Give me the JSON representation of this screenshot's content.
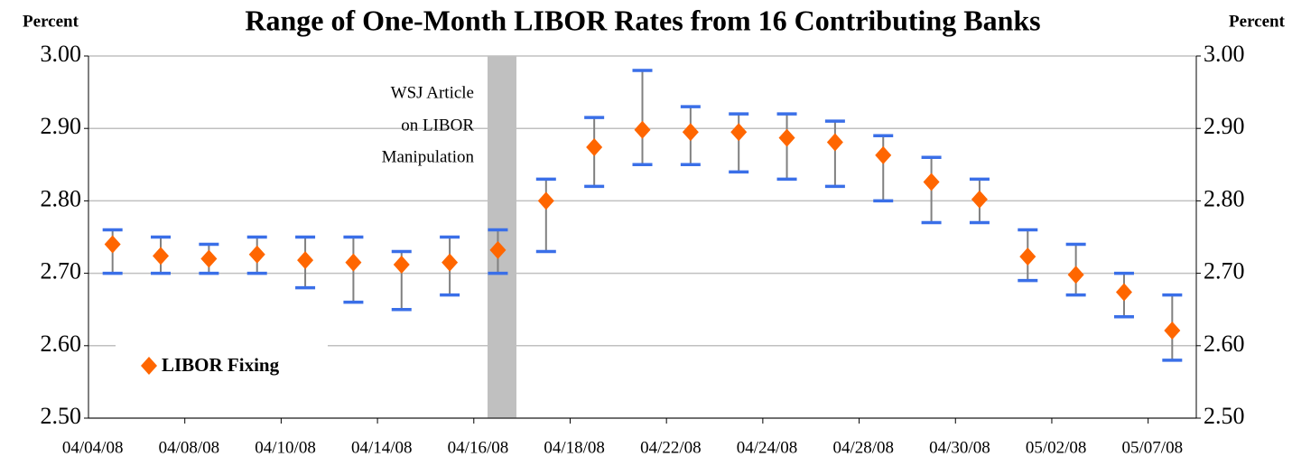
{
  "chart_data": {
    "type": "errorbar",
    "title": "Range of One-Month LIBOR Rates from 16 Contributing Banks",
    "y_label": "Percent",
    "y2_label": "Percent",
    "annotation": [
      "WSJ Article",
      "on LIBOR",
      "Manipulation"
    ],
    "categories": [
      "04/04/08",
      null,
      "04/08/08",
      null,
      "04/10/08",
      null,
      "04/14/08",
      null,
      "04/16/08",
      null,
      "04/18/08",
      null,
      "04/22/08",
      null,
      "04/24/08",
      null,
      "04/28/08",
      null,
      "04/30/08",
      null,
      "05/02/08",
      null,
      "05/07/08"
    ],
    "series": [
      {
        "name": "LIBOR Fixing",
        "color": "#ff6600",
        "values": [
          2.74,
          2.724,
          2.72,
          2.726,
          2.718,
          2.715,
          2.712,
          2.715,
          2.732,
          2.8,
          2.874,
          2.898,
          2.895,
          2.895,
          2.887,
          2.881,
          2.863,
          2.826,
          2.802,
          2.723,
          2.698,
          2.674,
          2.621
        ]
      }
    ],
    "high": [
      2.76,
      2.75,
      2.74,
      2.75,
      2.75,
      2.75,
      2.73,
      2.75,
      2.76,
      2.83,
      2.915,
      2.98,
      2.93,
      2.92,
      2.92,
      2.91,
      2.89,
      2.86,
      2.83,
      2.76,
      2.74,
      2.7,
      2.67
    ],
    "low": [
      2.7,
      2.7,
      2.7,
      2.7,
      2.68,
      2.66,
      2.65,
      2.67,
      2.7,
      2.73,
      2.82,
      2.85,
      2.85,
      2.84,
      2.83,
      2.82,
      2.8,
      2.77,
      2.77,
      2.69,
      2.67,
      2.64,
      2.58
    ],
    "range_color": "#3a6fe8",
    "stem_color": "#808080",
    "ylim": [
      2.5,
      3.0
    ],
    "yticks": [
      {
        "value": 2.5,
        "label": "2.50"
      },
      {
        "value": 2.6,
        "label": "2.60"
      },
      {
        "value": 2.7,
        "label": "2.70"
      },
      {
        "value": 2.8,
        "label": "2.80"
      },
      {
        "value": 2.9,
        "label": "2.90"
      },
      {
        "value": 3.0,
        "label": "3.00"
      }
    ],
    "y2lim": [
      2.5,
      3.0
    ],
    "y2ticks": [
      {
        "value": 2.5,
        "label": "2.50"
      },
      {
        "value": 2.6,
        "label": "2.60"
      },
      {
        "value": 2.7,
        "label": "2.70"
      },
      {
        "value": 2.8,
        "label": "2.80"
      },
      {
        "value": 2.9,
        "label": "2.90"
      },
      {
        "value": 3.0,
        "label": "3.00"
      }
    ],
    "grid": true
  }
}
